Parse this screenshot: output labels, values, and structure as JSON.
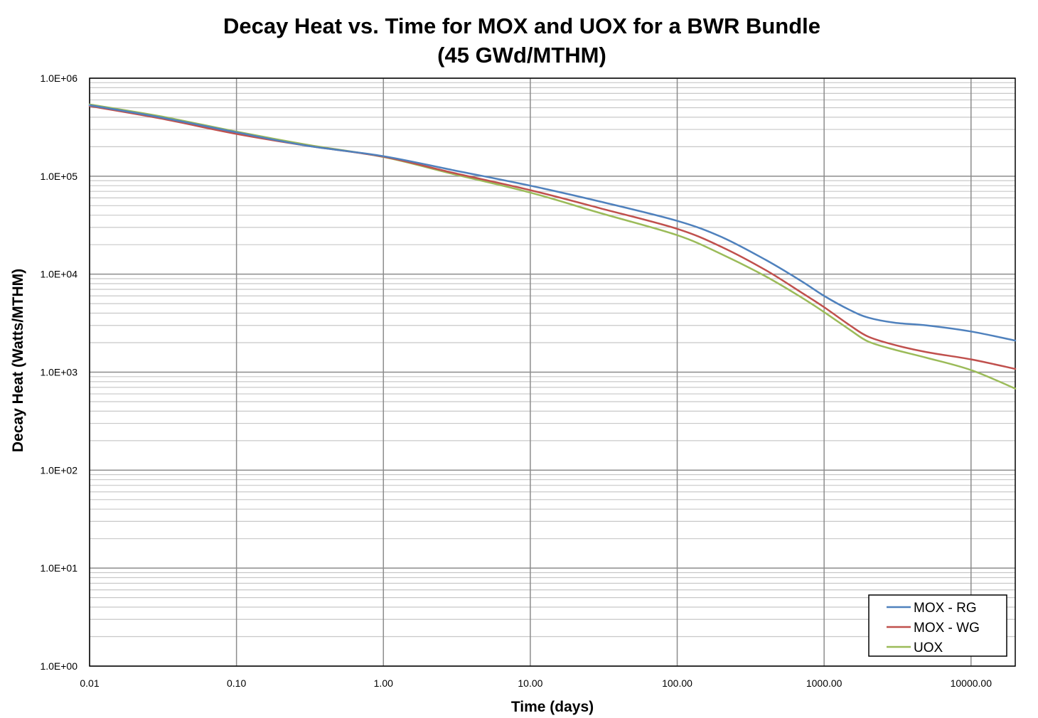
{
  "chart_data": {
    "type": "line",
    "title": "Decay Heat vs. Time for MOX and UOX for a BWR Bundle",
    "subtitle": "(45 GWd/MTHM)",
    "xlabel": "Time (days)",
    "ylabel": "Decay Heat (Watts/MTHM)",
    "x_scale": "log",
    "y_scale": "log",
    "xlim": [
      0.01,
      20000
    ],
    "ylim": [
      1,
      1000000
    ],
    "x_ticks": [
      0.01,
      0.1,
      1,
      10,
      100,
      1000,
      10000
    ],
    "x_tick_labels": [
      "0.01",
      "0.10",
      "1.00",
      "10.00",
      "100.00",
      "1000.00",
      "10000.00"
    ],
    "y_ticks": [
      1,
      10,
      100,
      1000,
      10000,
      100000,
      1000000
    ],
    "y_tick_labels": [
      "1.0E+00",
      "1.0E+01",
      "1.0E+02",
      "1.0E+03",
      "1.0E+04",
      "1.0E+05",
      "1.0E+06"
    ],
    "grid": true,
    "legend_position": "bottom-right",
    "series": [
      {
        "name": "MOX - RG",
        "color": "#4f81bd",
        "x": [
          0.01,
          0.03,
          0.1,
          0.3,
          1,
          3,
          10,
          30,
          100,
          200,
          400,
          700,
          1000,
          1500,
          2000,
          3000,
          5000,
          10000,
          20000
        ],
        "y": [
          530000,
          400000,
          280000,
          205000,
          160000,
          115000,
          80000,
          55000,
          35000,
          24000,
          14000,
          8500,
          6000,
          4300,
          3600,
          3200,
          3000,
          2600,
          2100
        ]
      },
      {
        "name": "MOX - WG",
        "color": "#c0504d",
        "x": [
          0.01,
          0.03,
          0.1,
          0.3,
          1,
          3,
          10,
          30,
          100,
          200,
          400,
          700,
          1000,
          1500,
          2000,
          3000,
          5000,
          10000,
          20000
        ],
        "y": [
          520000,
          390000,
          270000,
          205000,
          158000,
          108000,
          72000,
          47000,
          29000,
          19000,
          11000,
          6500,
          4600,
          3000,
          2300,
          1900,
          1600,
          1350,
          1080
        ]
      },
      {
        "name": "UOX",
        "color": "#9bbb59",
        "x": [
          0.01,
          0.03,
          0.1,
          0.3,
          1,
          3,
          10,
          30,
          100,
          200,
          400,
          700,
          1000,
          1500,
          2000,
          3000,
          5000,
          10000,
          20000
        ],
        "y": [
          540000,
          410000,
          285000,
          210000,
          157000,
          105000,
          68000,
          42000,
          25000,
          16000,
          9500,
          5800,
          4100,
          2700,
          2050,
          1700,
          1400,
          1050,
          680
        ]
      }
    ]
  }
}
